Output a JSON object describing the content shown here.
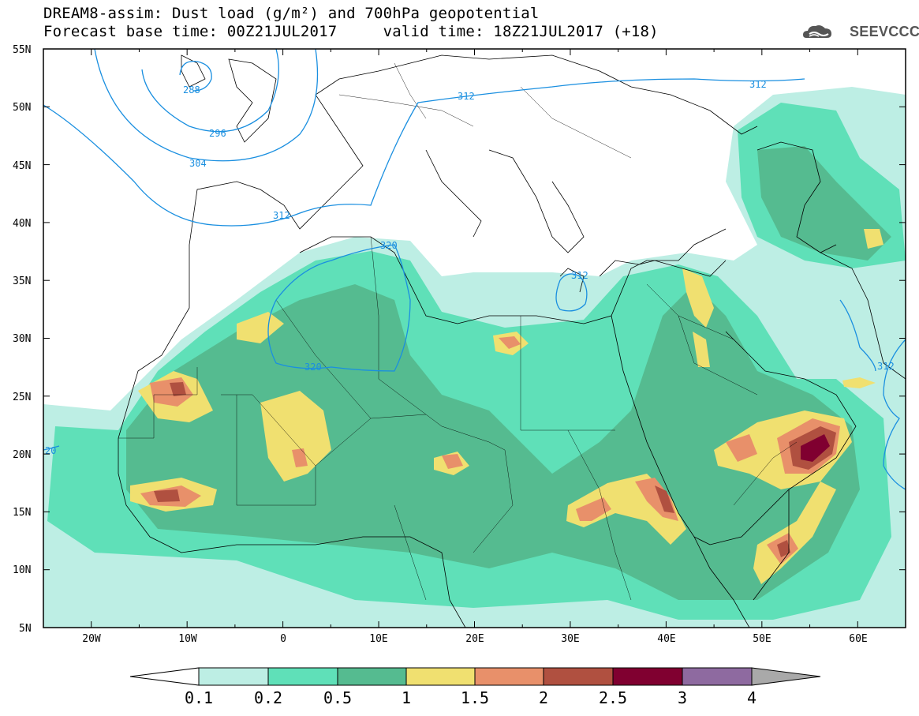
{
  "header": {
    "title_line1": "DREAM8-assim: Dust load (g/m²) and 700hPa geopotential",
    "title_line2": "Forecast base time: 00Z21JUL2017     valid time: 18Z21JUL2017 (+18)",
    "logo_text": "SEEVCCC"
  },
  "map": {
    "lat_labels": [
      "55N",
      "50N",
      "45N",
      "40N",
      "35N",
      "30N",
      "25N",
      "20N",
      "15N",
      "10N",
      "5N"
    ],
    "lon_labels": [
      "20W",
      "10W",
      "0",
      "10E",
      "20E",
      "30E",
      "40E",
      "50E",
      "60E"
    ],
    "contour_labels": [
      "288",
      "296",
      "304",
      "312",
      "312",
      "312",
      "320",
      "320",
      "312",
      "312",
      "20"
    ],
    "extent": {
      "lon": [
        -25,
        65
      ],
      "lat": [
        5,
        55
      ]
    },
    "colors": {
      "contour": "#1a8fe0",
      "coast": "#000000"
    }
  },
  "colorbar": {
    "labels": [
      "0.1",
      "0.2",
      "0.5",
      "1",
      "1.5",
      "2",
      "2.5",
      "3",
      "4"
    ],
    "colors": [
      "#ffffff",
      "#bdeee4",
      "#5fe0b8",
      "#55bb90",
      "#f0e070",
      "#e8906a",
      "#b05040",
      "#800030",
      "#8e6aa0",
      "#a9a9a9"
    ]
  },
  "chart_data": {
    "type": "heatmap",
    "title": "DREAM8-assim: Dust load (g/m²) and 700hPa geopotential",
    "legend_levels": [
      0.1,
      0.2,
      0.5,
      1,
      1.5,
      2,
      2.5,
      3,
      4
    ],
    "xlim": [
      -25,
      65
    ],
    "ylim": [
      5,
      55
    ]
  }
}
